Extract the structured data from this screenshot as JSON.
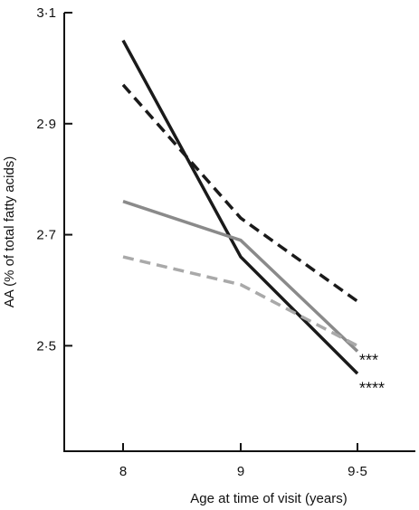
{
  "chart_data": {
    "type": "line",
    "xlabel": "Age at time of visit (years)",
    "ylabel": "AA (% of total fatty acids)",
    "categories": [
      "8",
      "9",
      "9·5"
    ],
    "ylim": [
      2.31,
      3.1
    ],
    "yticks": [
      2.5,
      2.7,
      2.9,
      3.1
    ],
    "ytick_labels": [
      "2·5",
      "2·7",
      "2·9",
      "3·1"
    ],
    "grid": false,
    "legend": "none",
    "series": [
      {
        "values": [
          3.05,
          2.66,
          2.45
        ],
        "color": "#1a1a1a",
        "dash": "solid"
      },
      {
        "values": [
          2.97,
          2.73,
          2.58
        ],
        "color": "#1a1a1a",
        "dash": "dashed"
      },
      {
        "values": [
          2.76,
          2.69,
          2.49
        ],
        "color": "#8a8a8a",
        "dash": "solid"
      },
      {
        "values": [
          2.66,
          2.61,
          2.5
        ],
        "color": "#a9a9a9",
        "dash": "dashed"
      }
    ],
    "annotations": [
      {
        "text": "***",
        "x": "9·5",
        "y": 2.48
      },
      {
        "text": "****",
        "x": "9·5",
        "y": 2.43
      }
    ]
  }
}
